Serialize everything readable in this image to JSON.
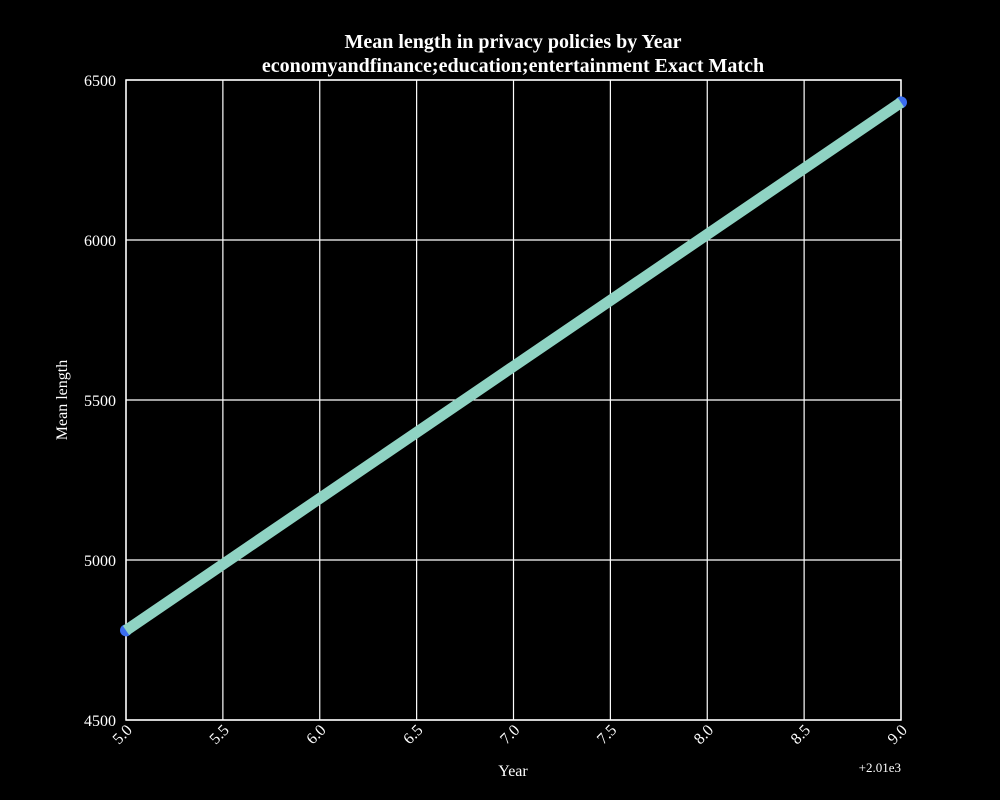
{
  "chart_data": {
    "type": "line",
    "title": "Mean length in privacy policies by Year",
    "subtitle": "economyandfinance;education;entertainment Exact Match",
    "xlabel": "Year",
    "ylabel": "Mean length",
    "x_offset_label": "+2.01e3",
    "xlim": [
      5.0,
      9.0
    ],
    "ylim": [
      4500,
      6500
    ],
    "xticks": [
      5.0,
      5.5,
      6.0,
      6.5,
      7.0,
      7.5,
      8.0,
      8.5,
      9.0
    ],
    "xtick_labels": [
      "5.0",
      "5.5",
      "6.0",
      "6.5",
      "7.0",
      "7.5",
      "8.0",
      "8.5",
      "9.0"
    ],
    "yticks": [
      4500,
      5000,
      5500,
      6000,
      6500
    ],
    "ytick_labels": [
      "4500",
      "5000",
      "5500",
      "6000",
      "6500"
    ],
    "grid": true,
    "background": "#000000",
    "series": [
      {
        "x": [
          5.0,
          9.0
        ],
        "values": [
          4780,
          6430
        ],
        "color": "#8fd3c3",
        "marker_color": "#3a6df0"
      }
    ]
  }
}
